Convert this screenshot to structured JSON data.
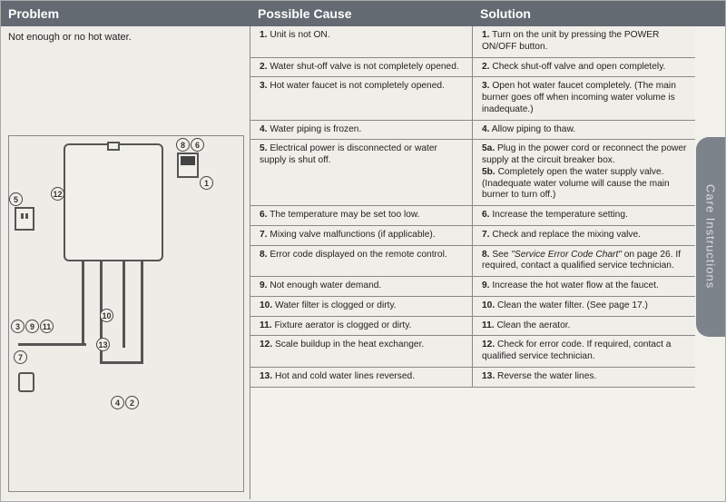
{
  "header": {
    "problem": "Problem",
    "cause": "Possible Cause",
    "solution": "Solution"
  },
  "problem_text": "Not enough or no hot water.",
  "side_tab": "Care Instructions",
  "rows": [
    {
      "n": "1.",
      "cause": "Unit is not ON.",
      "sn": "1.",
      "solution": "Turn on the unit by pressing the POWER ON/OFF button."
    },
    {
      "n": "2.",
      "cause": "Water shut-off valve is not completely opened.",
      "sn": "2.",
      "solution": "Check shut-off valve and open completely."
    },
    {
      "n": "3.",
      "cause": "Hot water faucet is not completely opened.",
      "sn": "3.",
      "solution": "Open hot water faucet completely. (The main burner goes off when incoming water volume is inadequate.)"
    },
    {
      "n": "4.",
      "cause": "Water piping is frozen.",
      "sn": "4.",
      "solution": "Allow piping to thaw."
    },
    {
      "n": "5.",
      "cause": "Electrical power is disconnected or water supply is shut off.",
      "sn": "5a.",
      "solution": "Plug in the power cord or reconnect the power supply at the circuit breaker box.",
      "sn2": "5b.",
      "solution2": "Completely open the water supply valve. (Inadequate water volume will cause the main burner to turn off.)"
    },
    {
      "n": "6.",
      "cause": "The temperature may be set too low.",
      "sn": "6.",
      "solution": "Increase the temperature setting."
    },
    {
      "n": "7.",
      "cause": "Mixing valve malfunctions (if applicable).",
      "sn": "7.",
      "solution": "Check and replace the mixing valve."
    },
    {
      "n": "8.",
      "cause": "Error code displayed on the remote control.",
      "sn": "8.",
      "solution_pre": "See ",
      "solution_em": "\"Service Error Code Chart\"",
      "solution_post": " on page 26. If required, contact a qualified service technician."
    },
    {
      "n": "9.",
      "cause": "Not enough water demand.",
      "sn": "9.",
      "solution": "Increase the hot water flow at the faucet."
    },
    {
      "n": "10.",
      "cause": "Water filter is clogged or dirty.",
      "sn": "10.",
      "solution": "Clean the water filter. (See page 17.)"
    },
    {
      "n": "11.",
      "cause": "Fixture aerator is clogged or dirty.",
      "sn": "11.",
      "solution": "Clean the aerator."
    },
    {
      "n": "12.",
      "cause": "Scale buildup in the heat exchanger.",
      "sn": "12.",
      "solution": "Check for error code. If required, contact a qualified service technician."
    },
    {
      "n": "13.",
      "cause": "Hot and cold water lines reversed.",
      "sn": "13.",
      "solution": "Reverse the water lines."
    }
  ],
  "callouts": {
    "c1": "1",
    "c2": "2",
    "c3": "3",
    "c4": "4",
    "c5": "5",
    "c6": "6",
    "c7": "7",
    "c8": "8",
    "c9": "9",
    "c10": "10",
    "c11": "11",
    "c12": "12",
    "c13": "13"
  }
}
